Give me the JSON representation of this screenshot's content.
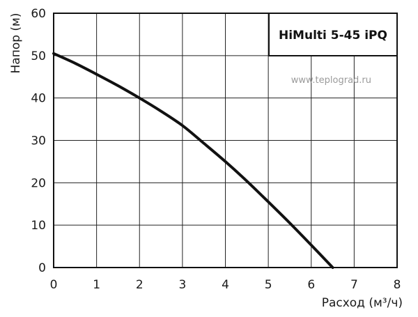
{
  "chart_data": {
    "type": "line",
    "title": "HiMulti 5-45 iPQ",
    "watermark": "www.teplograd.ru",
    "xlabel": "Расход (м³/ч)",
    "ylabel": "Напор (м)",
    "xlim": [
      0,
      8
    ],
    "ylim": [
      0,
      60
    ],
    "xticks": [
      "0",
      "1",
      "2",
      "3",
      "4",
      "5",
      "6",
      "7",
      "8"
    ],
    "yticks": [
      "0",
      "10",
      "20",
      "30",
      "40",
      "50",
      "60"
    ],
    "grid": true,
    "series": [
      {
        "x": [
          0,
          0.5,
          1,
          1.5,
          2,
          2.5,
          3,
          3.5,
          4,
          4.5,
          5,
          5.5,
          6,
          6.5
        ],
        "y": [
          50.5,
          48.2,
          45.6,
          42.9,
          40.0,
          36.9,
          33.5,
          29.3,
          25.0,
          20.4,
          15.5,
          10.5,
          5.3,
          0
        ],
        "color": "#111111"
      }
    ]
  }
}
